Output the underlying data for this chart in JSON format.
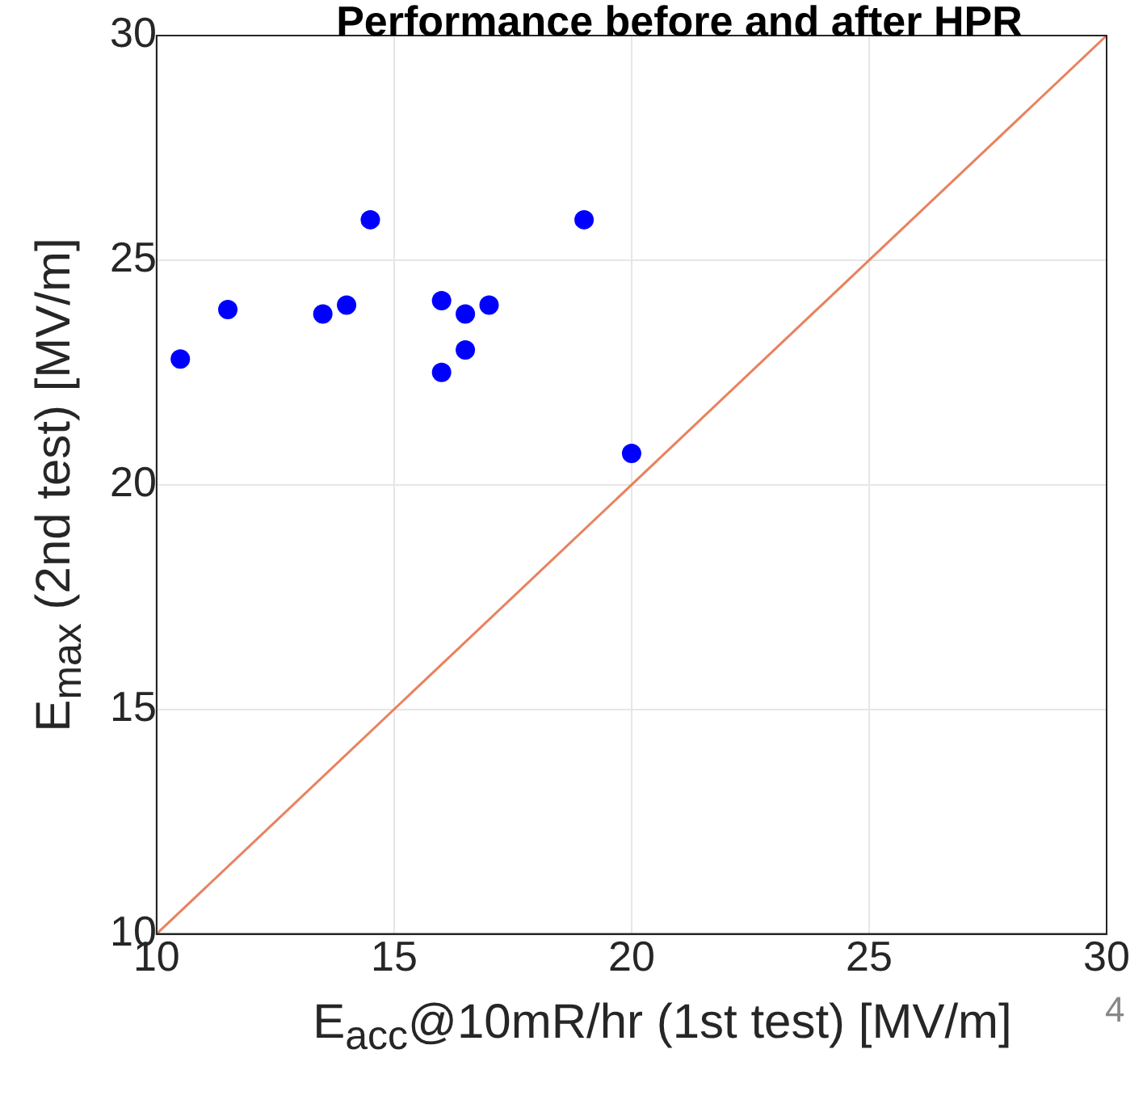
{
  "chart_data": {
    "type": "scatter",
    "title": "Performance before and after HPR",
    "xlabel": "E$_{acc}$@10mR/hr (1st test) [MV/m]",
    "ylabel": "E$_{max}$ (2nd test) [MV/m]",
    "annotations": [
      "4"
    ],
    "xlim": [
      10,
      30
    ],
    "ylim": [
      10,
      30
    ],
    "xticks": [
      10,
      15,
      20,
      25,
      30
    ],
    "yticks": [
      10,
      15,
      20,
      25,
      30
    ],
    "grid": true,
    "series": [
      {
        "marker": "circle",
        "color": "#0000ff",
        "x": [
          10.5,
          11.5,
          13.5,
          14.0,
          14.5,
          16.0,
          16.5,
          17.0,
          16.5,
          16.0,
          19.0,
          20.0
        ],
        "values": [
          22.8,
          23.9,
          23.8,
          24.0,
          25.9,
          24.1,
          23.8,
          24.0,
          23.0,
          22.5,
          25.9,
          20.7
        ]
      },
      {
        "type": "line",
        "marker": "none",
        "color": "#e8825e",
        "x": [
          10,
          30
        ],
        "values": [
          10,
          30
        ]
      }
    ]
  }
}
